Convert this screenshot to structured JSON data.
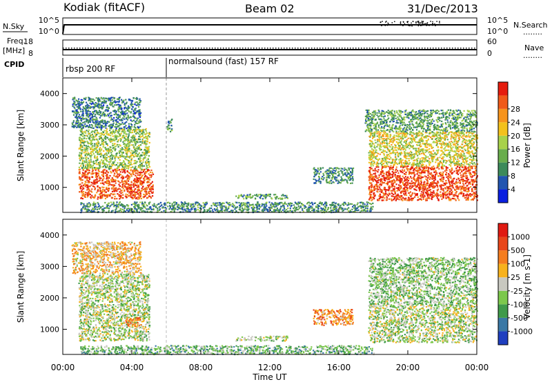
{
  "header": {
    "site": "Kodiak (fitACF)",
    "beam": "Beam 02",
    "date": "31/Dec/2013"
  },
  "top_panels": {
    "nsky_label": "N.Sky",
    "nsearch_label": "N.Search",
    "nsky_ticks": [
      "10^5",
      "10^0"
    ],
    "nsearch_ticks": [
      "10^5",
      "10^0"
    ],
    "freq_label": "Freq.",
    "freq_unit": "[MHz]",
    "freq_ticks": [
      "18",
      "8"
    ],
    "nave_label": "Nave",
    "nave_ticks": [
      "60",
      "0"
    ],
    "cpid_label": "CPID",
    "cpid_segments": [
      {
        "label": "rbsp 200 RF",
        "start_hour": 0
      },
      {
        "label": "normalsound (fast) 157 RF",
        "start_hour": 6
      }
    ],
    "legend_dots": "........"
  },
  "chart_data": [
    {
      "type": "heatmap",
      "name": "power",
      "ylabel": "Slant Range [km]",
      "xlim": [
        0,
        24
      ],
      "ylim": [
        200,
        4500
      ],
      "yticks": [
        1000,
        2000,
        3000,
        4000
      ],
      "colorbar": {
        "label": "Power [dB]",
        "ticks": [
          "4",
          "8",
          "12",
          "16",
          "20",
          "24",
          "28"
        ],
        "colors": [
          "#0a1fe0",
          "#2155b0",
          "#3c8a5a",
          "#69ad4c",
          "#a8d24a",
          "#f3c11c",
          "#f7941d",
          "#f05a1a",
          "#e51c0e"
        ]
      },
      "echo_regions": [
        {
          "x0": 0.9,
          "x1": 5.2,
          "y0": 650,
          "y1": 1600,
          "level": 0.85
        },
        {
          "x0": 0.9,
          "x1": 5.0,
          "y0": 1600,
          "y1": 2900,
          "level": 0.45
        },
        {
          "x0": 0.5,
          "x1": 4.5,
          "y0": 2900,
          "y1": 3900,
          "level": 0.25
        },
        {
          "x0": 6.0,
          "x1": 6.3,
          "y0": 2800,
          "y1": 3200,
          "level": 0.3
        },
        {
          "x0": 10.0,
          "x1": 13.0,
          "y0": 650,
          "y1": 800,
          "level": 0.35
        },
        {
          "x0": 14.5,
          "x1": 16.8,
          "y0": 1150,
          "y1": 1650,
          "level": 0.3
        },
        {
          "x0": 17.7,
          "x1": 24.0,
          "y0": 600,
          "y1": 1700,
          "level": 0.88
        },
        {
          "x0": 17.7,
          "x1": 24.0,
          "y0": 1700,
          "y1": 2800,
          "level": 0.55
        },
        {
          "x0": 17.5,
          "x1": 24.0,
          "y0": 2800,
          "y1": 3500,
          "level": 0.35
        },
        {
          "x0": 1.0,
          "x1": 18.0,
          "y0": 220,
          "y1": 550,
          "level": 0.3
        }
      ]
    },
    {
      "type": "heatmap",
      "name": "velocity",
      "ylabel": "Slant Range [km]",
      "xlabel": "Time UT",
      "xlim": [
        0,
        24
      ],
      "ylim": [
        200,
        4500
      ],
      "yticks": [
        1000,
        2000,
        3000,
        4000
      ],
      "xticks": [
        "00:00",
        "04:00",
        "08:00",
        "12:00",
        "16:00",
        "20:00",
        "00:00"
      ],
      "colorbar": {
        "label": "Velocity [m s-1]",
        "ticks": [
          "1000",
          "500",
          "100",
          "25",
          "-25",
          "-100",
          "-500",
          "-1000"
        ],
        "colors": [
          "#1f3fbf",
          "#3a78a5",
          "#3f9a4a",
          "#7cc84c",
          "#c8c8c0",
          "#f7b21d",
          "#f47d1f",
          "#e8461a",
          "#e01a12"
        ]
      },
      "echo_regions": [
        {
          "x0": 0.9,
          "x1": 5.0,
          "y0": 650,
          "y1": 1700,
          "level": 0.45
        },
        {
          "x0": 0.9,
          "x1": 5.0,
          "y0": 1700,
          "y1": 2800,
          "level": 0.45
        },
        {
          "x0": 3.5,
          "x1": 4.5,
          "y0": 1100,
          "y1": 1400,
          "level": 0.7
        },
        {
          "x0": 0.5,
          "x1": 4.5,
          "y0": 2800,
          "y1": 3800,
          "level": 0.6
        },
        {
          "x0": 10.0,
          "x1": 13.0,
          "y0": 650,
          "y1": 800,
          "level": 0.45
        },
        {
          "x0": 14.5,
          "x1": 16.8,
          "y0": 1150,
          "y1": 1650,
          "level": 0.7
        },
        {
          "x0": 17.7,
          "x1": 24.0,
          "y0": 600,
          "y1": 1800,
          "level": 0.45
        },
        {
          "x0": 17.7,
          "x1": 24.0,
          "y0": 1800,
          "y1": 3300,
          "level": 0.4
        },
        {
          "x0": 1.0,
          "x1": 18.0,
          "y0": 220,
          "y1": 500,
          "level": 0.35
        }
      ]
    }
  ]
}
